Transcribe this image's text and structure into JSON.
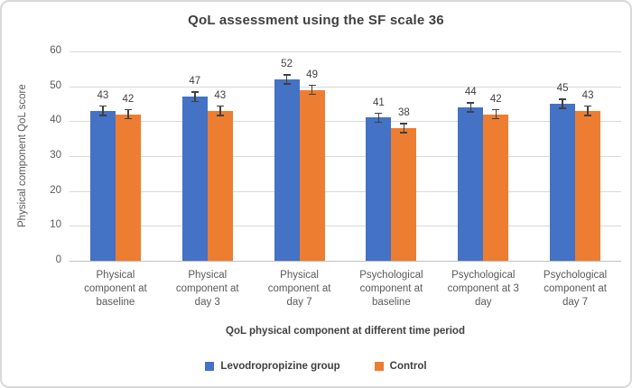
{
  "chart_data": {
    "type": "bar",
    "title": "QoL assessment using the SF scale 36",
    "xlabel": "QoL physical component at different time period",
    "ylabel": "Physical component QoL score",
    "ylim": [
      0,
      60
    ],
    "yticks": [
      0,
      10,
      20,
      30,
      40,
      50,
      60
    ],
    "grid": true,
    "legend_position": "bottom",
    "categories": [
      "Physical component at baseline",
      "Physical component at day 3",
      "Physical component at day 7",
      "Psychological component at baseline",
      "Psychological component at 3 day",
      "Psychological component at day 7"
    ],
    "category_label_lines": [
      [
        "Physical",
        "component at",
        "baseline"
      ],
      [
        "Physical",
        "component at",
        "day 3"
      ],
      [
        "Physical",
        "component at",
        "day 7"
      ],
      [
        "Psychological",
        "component at",
        "baseline"
      ],
      [
        "Psychological",
        "component at 3",
        "day"
      ],
      [
        "Psychological",
        "component at",
        "day 7"
      ]
    ],
    "series": [
      {
        "name": "Levodropropizine group",
        "color": "#4472C4",
        "values": [
          43,
          47,
          52,
          41,
          44,
          45
        ]
      },
      {
        "name": "Control",
        "color": "#ED7D31",
        "values": [
          42,
          43,
          49,
          38,
          42,
          43
        ]
      }
    ],
    "data_labels": true,
    "error_bar": {
      "magnitude": 1.5,
      "color": "#404040"
    },
    "colors": {
      "grid": "#D9D9D9",
      "axis": "#BFBFBF",
      "title_text": "#404040",
      "tick_text": "#595959",
      "frame_border": "#D9D9D9"
    }
  }
}
